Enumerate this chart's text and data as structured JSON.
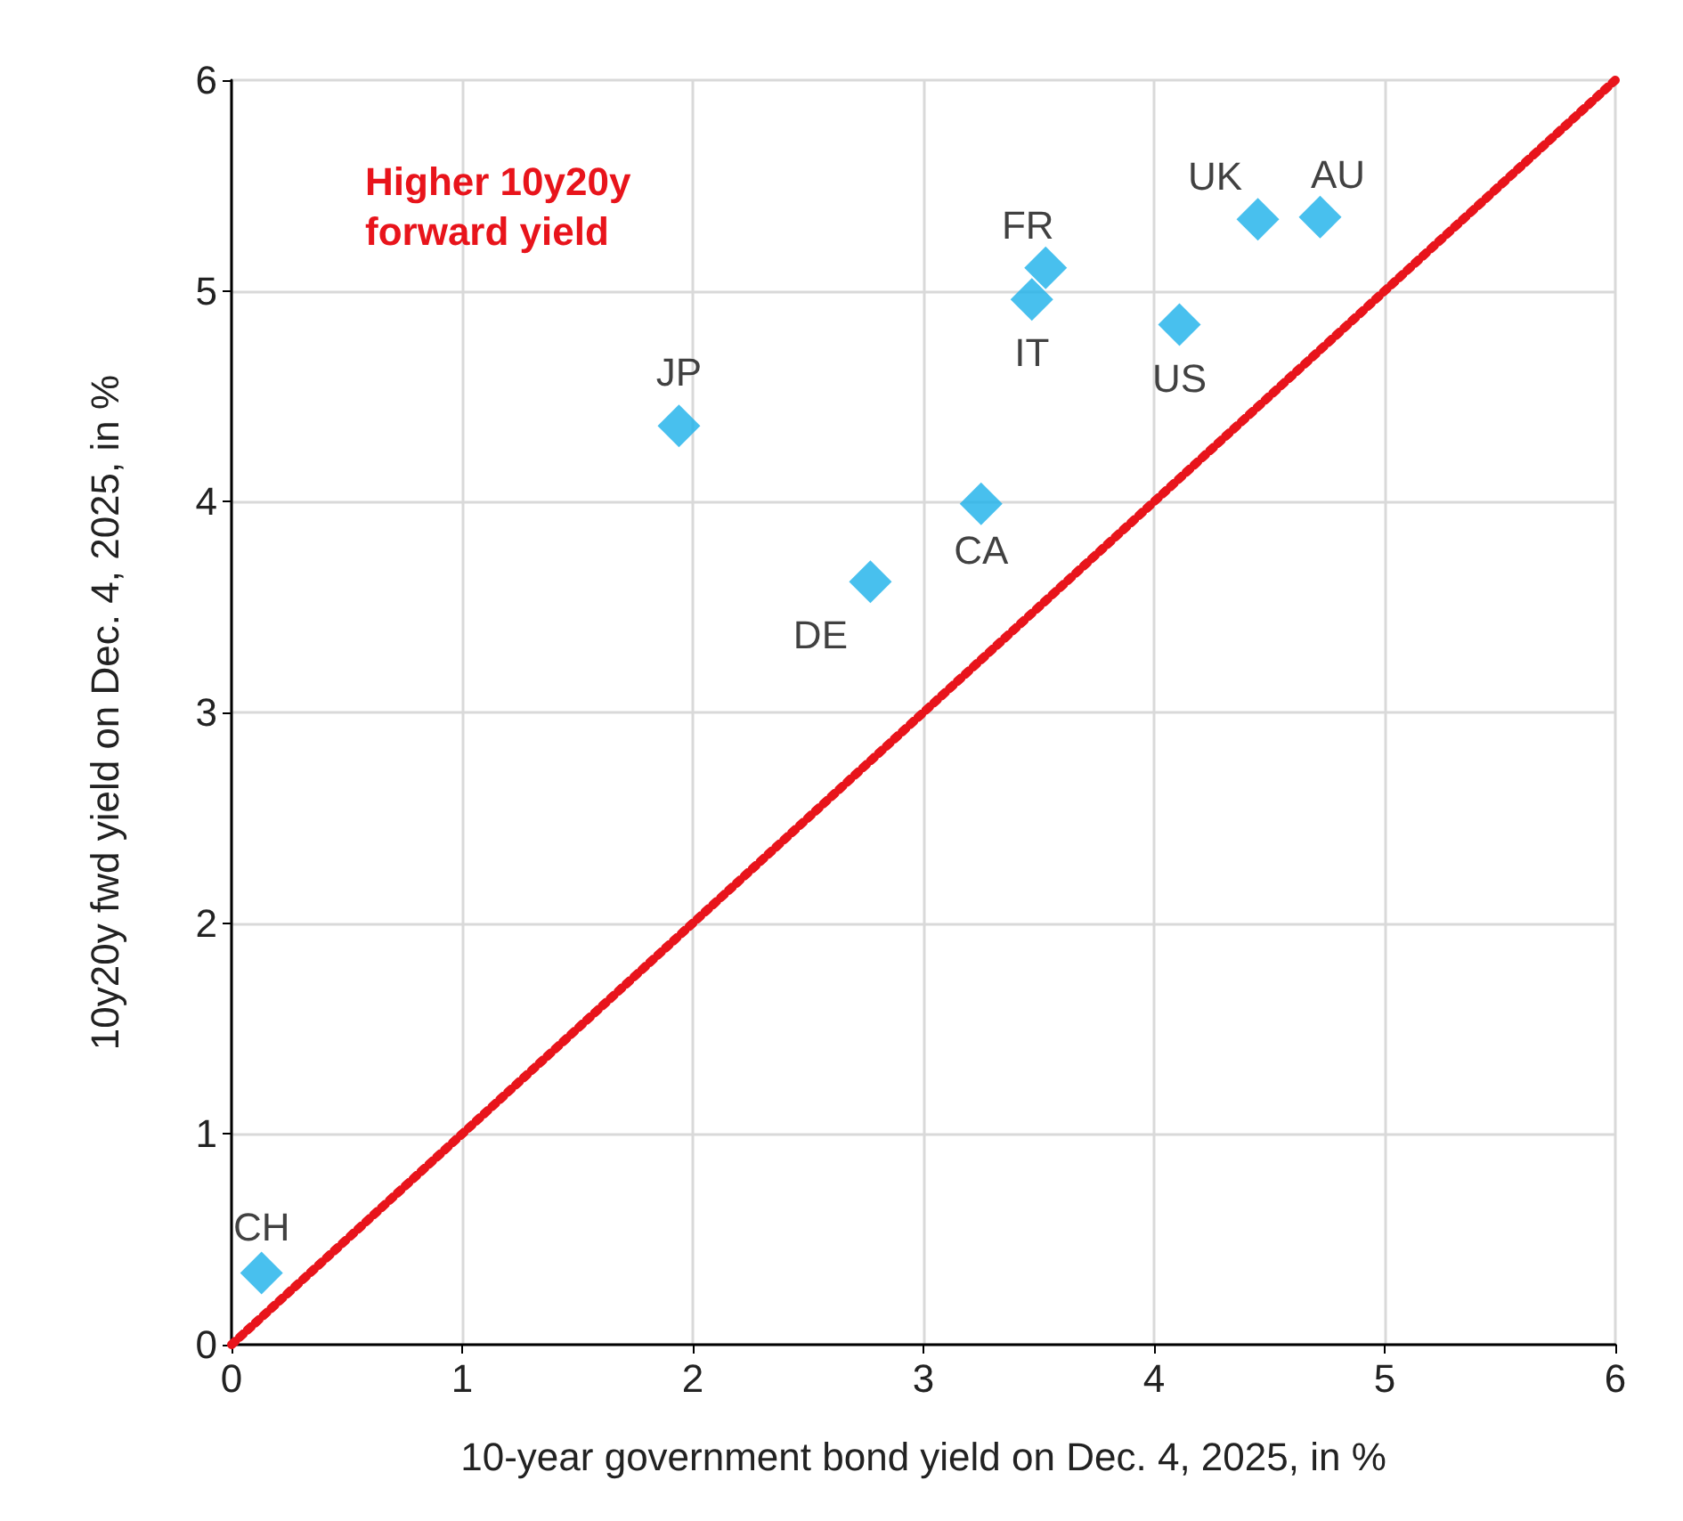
{
  "chart_data": {
    "type": "scatter",
    "xlabel": "10-year government bond yield on Dec. 4, 2025, in %",
    "ylabel": "10y20y fwd yield on Dec. 4, 2025, in %",
    "series": [
      {
        "color": "#1ab0ea",
        "marker": "diamond",
        "x": [
          0.13,
          1.94,
          2.77,
          3.25,
          3.47,
          3.53,
          4.11,
          4.45,
          4.72
        ],
        "values": [
          0.34,
          4.36,
          3.62,
          3.99,
          4.96,
          5.11,
          4.84,
          5.34,
          5.35
        ]
      },
      {
        "type": "line",
        "color": "#e8141b",
        "line_style": "dotted",
        "marker": "none",
        "x": [
          0,
          6
        ],
        "values": [
          0,
          6
        ]
      }
    ],
    "annotations": [
      {
        "text": "CH",
        "x": 0.13,
        "y": 0.34
      },
      {
        "text": "JP",
        "x": 1.94,
        "y": 4.36
      },
      {
        "text": "DE",
        "x": 2.77,
        "y": 3.62
      },
      {
        "text": "CA",
        "x": 3.25,
        "y": 3.99
      },
      {
        "text": "IT",
        "x": 3.47,
        "y": 4.96
      },
      {
        "text": "FR",
        "x": 3.53,
        "y": 5.11
      },
      {
        "text": "US",
        "x": 4.11,
        "y": 4.84
      },
      {
        "text": "UK",
        "x": 4.45,
        "y": 5.34
      },
      {
        "text": "AU",
        "x": 4.72,
        "y": 5.35
      },
      "Higher 10y20y forward yield"
    ],
    "xlim": [
      0,
      6
    ],
    "xticks": [
      0,
      1,
      2,
      3,
      4,
      5,
      6
    ],
    "ylim": [
      0,
      6
    ],
    "yticks": [
      0,
      1,
      2,
      3,
      4,
      5,
      6
    ],
    "grid": true
  }
}
